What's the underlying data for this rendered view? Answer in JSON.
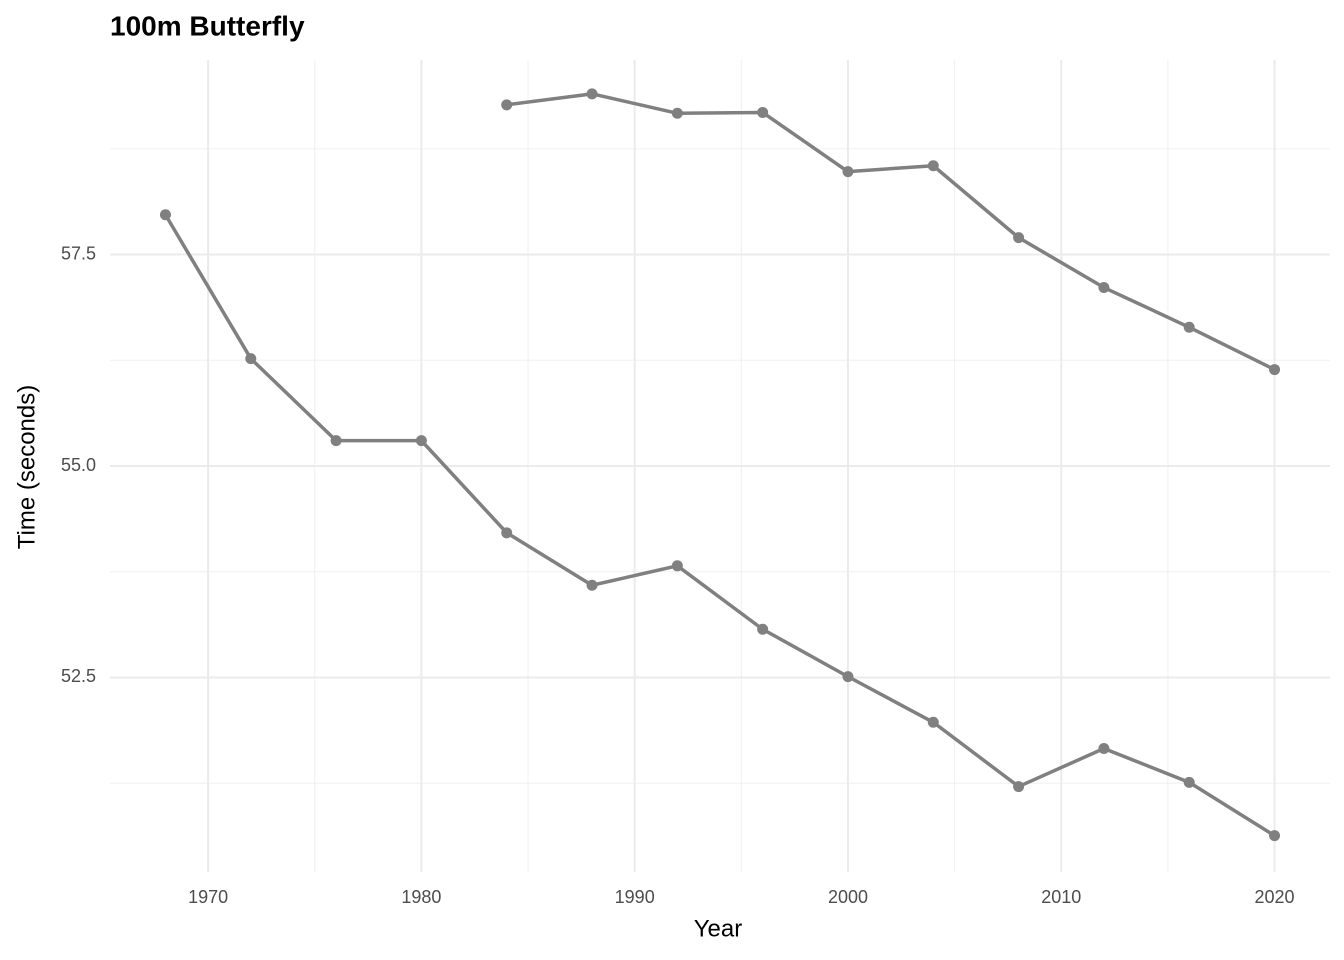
{
  "chart_data": {
    "type": "line",
    "title": "100m Butterfly",
    "x_label": "Year",
    "y_label": "Time (seconds)",
    "x": [
      1968,
      1972,
      1976,
      1980,
      1984,
      1988,
      1992,
      1996,
      2000,
      2004,
      2008,
      2012,
      2016,
      2020
    ],
    "series": [
      {
        "color": "#808080",
        "values": [
          null,
          null,
          null,
          null,
          59.27,
          59.4,
          59.17,
          59.18,
          58.48,
          58.55,
          57.7,
          57.11,
          56.64,
          56.14
        ]
      },
      {
        "color": "#808080",
        "values": [
          57.97,
          56.27,
          55.3,
          55.3,
          54.21,
          53.59,
          53.82,
          53.07,
          52.51,
          51.97,
          51.21,
          51.66,
          51.26,
          50.63
        ]
      }
    ],
    "xlim": [
      1965.4,
      2022.6
    ],
    "xticks": [
      1970,
      1980,
      1990,
      2000,
      2010,
      2020
    ],
    "ylim": [
      50.2,
      59.8
    ],
    "yticks": [
      52.5,
      {
        "value": 55,
        "label": "55.0"
      },
      57.5
    ],
    "grid": true
  }
}
